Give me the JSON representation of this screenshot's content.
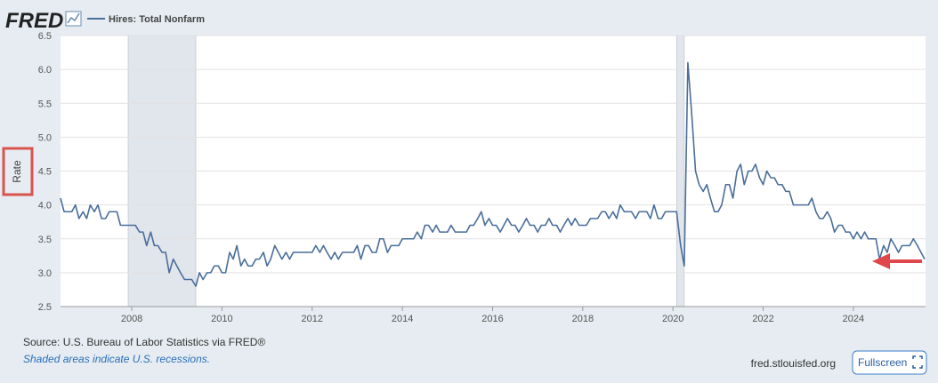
{
  "logo": "FRED",
  "chart_data": {
    "type": "line",
    "legend": "Hires: Total Nonfarm",
    "ylabel": "Rate",
    "source": "Source: U.S. Bureau of Labor Statistics via FRED®",
    "note": "Shaded areas indicate U.S. recessions.",
    "site": "fred.stlouisfed.org",
    "button": "Fullscreen",
    "xlim": [
      2006.42,
      2025.6
    ],
    "xticks": [
      2008,
      2010,
      2012,
      2014,
      2016,
      2018,
      2020,
      2022,
      2024
    ],
    "ylim": [
      2.5,
      6.5
    ],
    "yticks": [
      {
        "value": 2.5,
        "label": "2.5"
      },
      {
        "value": 3,
        "label": "3.0"
      },
      3.5,
      {
        "value": 4,
        "label": "4.0"
      },
      4.5,
      {
        "value": 5,
        "label": "5.0"
      },
      5.5,
      {
        "value": 6,
        "label": "6.0"
      },
      6.5
    ],
    "grid": true,
    "recessions": [
      [
        2007.92,
        2009.42
      ],
      [
        2020.08,
        2020.25
      ]
    ],
    "series": [
      {
        "name": "Hires: Total Nonfarm",
        "color": "#4a6e9a",
        "x": [
          2006.42,
          2006.5,
          2006.58,
          2006.67,
          2006.75,
          2006.83,
          2006.92,
          2007,
          2007.08,
          2007.17,
          2007.25,
          2007.33,
          2007.42,
          2007.5,
          2007.58,
          2007.67,
          2007.75,
          2007.83,
          2007.92,
          2008,
          2008.08,
          2008.17,
          2008.25,
          2008.33,
          2008.42,
          2008.5,
          2008.58,
          2008.67,
          2008.75,
          2008.83,
          2008.92,
          2009,
          2009.08,
          2009.17,
          2009.25,
          2009.33,
          2009.42,
          2009.5,
          2009.58,
          2009.67,
          2009.75,
          2009.83,
          2009.92,
          2010,
          2010.08,
          2010.17,
          2010.25,
          2010.33,
          2010.42,
          2010.5,
          2010.58,
          2010.67,
          2010.75,
          2010.83,
          2010.92,
          2011,
          2011.08,
          2011.17,
          2011.25,
          2011.33,
          2011.42,
          2011.5,
          2011.58,
          2011.67,
          2011.75,
          2011.83,
          2011.92,
          2012,
          2012.08,
          2012.17,
          2012.25,
          2012.33,
          2012.42,
          2012.5,
          2012.58,
          2012.67,
          2012.75,
          2012.83,
          2012.92,
          2013,
          2013.08,
          2013.17,
          2013.25,
          2013.33,
          2013.42,
          2013.5,
          2013.58,
          2013.67,
          2013.75,
          2013.83,
          2013.92,
          2014,
          2014.08,
          2014.17,
          2014.25,
          2014.33,
          2014.42,
          2014.5,
          2014.58,
          2014.67,
          2014.75,
          2014.83,
          2014.92,
          2015,
          2015.08,
          2015.17,
          2015.25,
          2015.33,
          2015.42,
          2015.5,
          2015.58,
          2015.67,
          2015.75,
          2015.83,
          2015.92,
          2016,
          2016.08,
          2016.17,
          2016.25,
          2016.33,
          2016.42,
          2016.5,
          2016.58,
          2016.67,
          2016.75,
          2016.83,
          2016.92,
          2017,
          2017.08,
          2017.17,
          2017.25,
          2017.33,
          2017.42,
          2017.5,
          2017.58,
          2017.67,
          2017.75,
          2017.83,
          2017.92,
          2018,
          2018.08,
          2018.17,
          2018.25,
          2018.33,
          2018.42,
          2018.5,
          2018.58,
          2018.67,
          2018.75,
          2018.83,
          2018.92,
          2019,
          2019.08,
          2019.17,
          2019.25,
          2019.33,
          2019.42,
          2019.5,
          2019.58,
          2019.67,
          2019.75,
          2019.83,
          2019.92,
          2020,
          2020.08,
          2020.17,
          2020.25,
          2020.33,
          2020.42,
          2020.5,
          2020.58,
          2020.67,
          2020.75,
          2020.83,
          2020.92,
          2021,
          2021.08,
          2021.17,
          2021.25,
          2021.33,
          2021.42,
          2021.5,
          2021.58,
          2021.67,
          2021.75,
          2021.83,
          2021.92,
          2022,
          2022.08,
          2022.17,
          2022.25,
          2022.33,
          2022.42,
          2022.5,
          2022.58,
          2022.67,
          2022.75,
          2022.83,
          2022.92,
          2023,
          2023.08,
          2023.17,
          2023.25,
          2023.33,
          2023.42,
          2023.5,
          2023.58,
          2023.67,
          2023.75,
          2023.83,
          2023.92,
          2024,
          2024.08,
          2024.17,
          2024.25,
          2024.33,
          2024.42,
          2024.5,
          2024.58,
          2024.67,
          2024.75,
          2024.83,
          2024.92,
          2025,
          2025.08,
          2025.17,
          2025.25,
          2025.33,
          2025.42,
          2025.5,
          2025.58
        ],
        "values": [
          4.1,
          3.9,
          3.9,
          3.9,
          4.0,
          3.8,
          3.9,
          3.8,
          4.0,
          3.9,
          4.0,
          3.8,
          3.8,
          3.9,
          3.9,
          3.9,
          3.7,
          3.7,
          3.7,
          3.7,
          3.7,
          3.6,
          3.6,
          3.4,
          3.6,
          3.4,
          3.4,
          3.3,
          3.3,
          3.0,
          3.2,
          3.1,
          3.0,
          2.9,
          2.9,
          2.9,
          2.8,
          3.0,
          2.9,
          3.0,
          3.0,
          3.1,
          3.1,
          3.0,
          3.0,
          3.3,
          3.2,
          3.4,
          3.1,
          3.2,
          3.1,
          3.1,
          3.2,
          3.2,
          3.3,
          3.1,
          3.2,
          3.4,
          3.3,
          3.2,
          3.3,
          3.2,
          3.3,
          3.3,
          3.3,
          3.3,
          3.3,
          3.3,
          3.4,
          3.3,
          3.4,
          3.3,
          3.2,
          3.3,
          3.2,
          3.3,
          3.3,
          3.3,
          3.3,
          3.4,
          3.2,
          3.4,
          3.4,
          3.3,
          3.3,
          3.5,
          3.5,
          3.3,
          3.4,
          3.4,
          3.4,
          3.5,
          3.5,
          3.5,
          3.5,
          3.6,
          3.5,
          3.7,
          3.7,
          3.6,
          3.7,
          3.6,
          3.6,
          3.6,
          3.7,
          3.6,
          3.6,
          3.6,
          3.6,
          3.7,
          3.7,
          3.8,
          3.9,
          3.7,
          3.8,
          3.7,
          3.7,
          3.6,
          3.7,
          3.8,
          3.7,
          3.7,
          3.6,
          3.7,
          3.8,
          3.7,
          3.7,
          3.6,
          3.7,
          3.7,
          3.8,
          3.7,
          3.7,
          3.6,
          3.7,
          3.8,
          3.7,
          3.8,
          3.7,
          3.7,
          3.7,
          3.8,
          3.8,
          3.8,
          3.9,
          3.9,
          3.8,
          3.9,
          3.8,
          4.0,
          3.9,
          3.9,
          3.9,
          3.8,
          3.9,
          3.9,
          3.9,
          3.8,
          4.0,
          3.8,
          3.8,
          3.9,
          3.9,
          3.9,
          3.9,
          3.4,
          3.1,
          6.1,
          5.3,
          4.5,
          4.3,
          4.2,
          4.3,
          4.1,
          3.9,
          3.9,
          4.0,
          4.3,
          4.3,
          4.1,
          4.5,
          4.6,
          4.3,
          4.5,
          4.5,
          4.6,
          4.4,
          4.3,
          4.5,
          4.4,
          4.4,
          4.3,
          4.3,
          4.2,
          4.2,
          4.0,
          4.0,
          4.0,
          4.0,
          4.0,
          4.1,
          3.9,
          3.8,
          3.8,
          3.9,
          3.8,
          3.6,
          3.7,
          3.7,
          3.6,
          3.6,
          3.5,
          3.6,
          3.5,
          3.6,
          3.5,
          3.5,
          3.5,
          3.2,
          3.4,
          3.3,
          3.5,
          3.4,
          3.3,
          3.4,
          3.4,
          3.4,
          3.5,
          3.4,
          3.3,
          3.2
        ]
      }
    ]
  }
}
